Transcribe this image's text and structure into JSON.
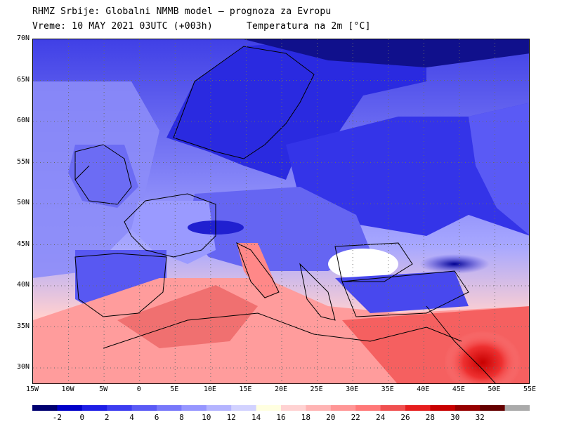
{
  "title": {
    "line1": "RHMZ Srbije: Globalni NMMB model — prognoza za Evropu",
    "line2": "Vreme: 10 MAY 2021 03UTC (+003h)      Temperatura na 2m [°C]"
  },
  "map": {
    "lat_labels": [
      "70N",
      "65N",
      "60N",
      "55N",
      "50N",
      "45N",
      "40N",
      "35N",
      "30N"
    ],
    "lon_labels": [
      "15W",
      "10W",
      "5W",
      "0",
      "5E",
      "10E",
      "15E",
      "20E",
      "25E",
      "30E",
      "35E",
      "40E",
      "45E",
      "50E",
      "55E"
    ],
    "grid": "dotted",
    "colors": {
      "sea_cool": "#8c8cff",
      "land_cold": "#3c3cf0",
      "land_warm": "#f07070",
      "desert_hot": "#e83030",
      "border": "#000000"
    }
  },
  "legend": {
    "ticks": [
      "-2",
      "0",
      "2",
      "4",
      "6",
      "8",
      "10",
      "12",
      "14",
      "16",
      "18",
      "20",
      "22",
      "24",
      "26",
      "28",
      "30",
      "32"
    ],
    "colors": [
      "#000070",
      "#0000c8",
      "#1e1ee6",
      "#3c3cf0",
      "#5a5af5",
      "#7878fa",
      "#9696ff",
      "#b4b4ff",
      "#d2d2ff",
      "#ffffe0",
      "#ffd2d2",
      "#ffb4b4",
      "#ff9696",
      "#ff7878",
      "#f05050",
      "#e61e1e",
      "#c80000",
      "#960000",
      "#640000",
      "#aaaaaa"
    ]
  }
}
